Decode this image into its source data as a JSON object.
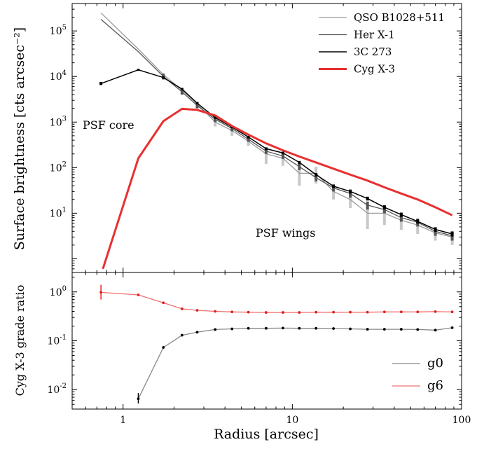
{
  "chart_data": [
    {
      "type": "line",
      "xlabel": "",
      "ylabel": "Surface brightness [cts arcsec⁻²]",
      "xscale": "log",
      "yscale": "log",
      "xlim": [
        0.5,
        100
      ],
      "ylim": [
        0.5,
        400000
      ],
      "grid": false,
      "legend_position": "top-right",
      "annotations": [
        "PSF core",
        "PSF wings"
      ],
      "x_tick_labels": [],
      "y_tick_labels": [
        {
          "value": 10,
          "base": "10",
          "exp": "1"
        },
        {
          "value": 100,
          "base": "10",
          "exp": "2"
        },
        {
          "value": 1000,
          "base": "10",
          "exp": "3"
        },
        {
          "value": 10000,
          "base": "10",
          "exp": "4"
        },
        {
          "value": 100000,
          "base": "10",
          "exp": "5"
        }
      ],
      "series": [
        {
          "name": "QSO B1028+511",
          "color": "#9a9a9a",
          "width": 1.3,
          "x": [
            0.74,
            1.23,
            1.73,
            2.23,
            2.74,
            3.5,
            4.4,
            5.5,
            7.0,
            8.8,
            11.0,
            13.8,
            17.5,
            22.0,
            27.8,
            35.0,
            44.0,
            55.0,
            70.0,
            88.0
          ],
          "y": [
            250000,
            40000,
            11000,
            5000,
            2500,
            1000,
            650,
            380,
            200,
            160,
            75,
            75,
            30,
            20,
            10,
            10,
            7,
            5.5,
            3.7,
            3.0
          ],
          "err_lo": [
            null,
            null,
            null,
            null,
            null,
            800,
            500,
            300,
            120,
            110,
            40,
            45,
            20,
            13,
            4.5,
            5.5,
            4.3,
            3.5,
            2.5,
            2.0
          ],
          "err_hi": [
            null,
            null,
            null,
            null,
            null,
            1300,
            850,
            480,
            280,
            210,
            110,
            105,
            42,
            28,
            15,
            15,
            9.5,
            7.5,
            5.0,
            4.1
          ]
        },
        {
          "name": "Her X-1",
          "color": "#555555",
          "width": 1.3,
          "x": [
            0.74,
            1.23,
            1.73,
            2.23,
            2.74,
            3.5,
            4.4,
            5.5,
            7.0,
            8.8,
            11.0,
            13.8,
            17.5,
            22.0,
            27.8,
            35.0,
            44.0,
            55.0,
            70.0,
            88.0
          ],
          "y": [
            180000,
            35000,
            10000,
            4600,
            2300,
            1150,
            720,
            420,
            230,
            180,
            105,
            60,
            36,
            27,
            15,
            12,
            8,
            6.3,
            4.0,
            3.2
          ],
          "err_lo": [
            null,
            null,
            8600,
            4000,
            2000,
            1000,
            630,
            370,
            200,
            155,
            88,
            50,
            30,
            22,
            12,
            10,
            6.5,
            5.1,
            3.2,
            2.5
          ],
          "err_hi": [
            null,
            null,
            11600,
            5300,
            2600,
            1320,
            820,
            480,
            262,
            205,
            124,
            72,
            43,
            32,
            18,
            14.4,
            9.5,
            7.6,
            4.8,
            4.0
          ]
        },
        {
          "name": "3C 273",
          "color": "#000000",
          "width": 1.5,
          "x": [
            0.74,
            1.23,
            1.73,
            2.23,
            2.74,
            3.5,
            4.4,
            5.5,
            7.0,
            8.8,
            11.0,
            13.8,
            17.5,
            22.0,
            27.8,
            35.0,
            44.0,
            55.0,
            70.0,
            88.0
          ],
          "y": [
            7000,
            14000,
            9500,
            5300,
            2600,
            1250,
            780,
            470,
            260,
            210,
            130,
            70,
            39,
            30,
            21,
            13.5,
            9.3,
            6.6,
            4.4,
            3.5
          ],
          "err_lo": [
            6500,
            13500,
            9000,
            5000,
            2450,
            1180,
            730,
            440,
            243,
            196,
            120,
            64,
            36,
            27,
            19,
            12.2,
            8.3,
            5.9,
            3.9,
            3.1
          ],
          "err_hi": [
            7600,
            14500,
            10000,
            5600,
            2750,
            1330,
            830,
            500,
            278,
            225,
            140,
            76,
            42,
            33,
            23,
            14.9,
            10.3,
            7.3,
            4.9,
            3.9
          ]
        },
        {
          "name": "Cyg X-3",
          "color": "#e83030",
          "width": 3,
          "x": [
            0.76,
            1.23,
            1.73,
            2.23,
            2.74,
            3.5,
            4.4,
            5.5,
            7.0,
            8.8,
            11.0,
            13.8,
            17.5,
            22.0,
            27.8,
            35.0,
            44.0,
            55.0,
            70.0,
            88.0
          ],
          "y": [
            0.6,
            160,
            1050,
            1950,
            1850,
            1400,
            820,
            530,
            340,
            240,
            175,
            130,
            95,
            70,
            52,
            37,
            27,
            20,
            13.5,
            9.0
          ],
          "err_lo": [],
          "err_hi": []
        }
      ]
    },
    {
      "type": "line",
      "xlabel": "Radius [arcsec]",
      "ylabel": "Cyg X-3 grade ratio",
      "xscale": "log",
      "yscale": "log",
      "xlim": [
        0.5,
        100
      ],
      "ylim": [
        0.004,
        2.5
      ],
      "grid": false,
      "legend_position": "bottom-right",
      "x_tick_labels": [
        {
          "value": 1,
          "text": "1"
        },
        {
          "value": 10,
          "text": "10"
        },
        {
          "value": 100,
          "text": "100"
        }
      ],
      "y_tick_labels": [
        {
          "value": 0.01,
          "base": "10",
          "exp": "-2"
        },
        {
          "value": 0.1,
          "base": "10",
          "exp": "-1"
        },
        {
          "value": 1,
          "base": "10",
          "exp": "0"
        }
      ],
      "series": [
        {
          "name": "g0",
          "color": "#888888",
          "mark_color": "#000000",
          "width": 1.3,
          "x": [
            1.23,
            1.73,
            2.23,
            2.74,
            3.5,
            4.4,
            5.5,
            7.0,
            8.8,
            11.0,
            13.8,
            17.5,
            22.0,
            27.8,
            35.0,
            44.0,
            55.0,
            70.0,
            88.0
          ],
          "y": [
            0.0065,
            0.073,
            0.13,
            0.15,
            0.17,
            0.175,
            0.18,
            0.18,
            0.182,
            0.18,
            0.18,
            0.178,
            0.175,
            0.172,
            0.172,
            0.172,
            0.17,
            0.165,
            0.185
          ],
          "err_lo": [
            0.0052,
            null,
            null,
            null,
            null,
            null,
            null,
            null,
            null,
            null,
            null,
            null,
            null,
            null,
            null,
            null,
            null,
            null,
            null
          ],
          "err_hi": [
            0.0085,
            null,
            null,
            null,
            null,
            null,
            null,
            null,
            null,
            null,
            null,
            null,
            null,
            null,
            null,
            null,
            null,
            null,
            null
          ]
        },
        {
          "name": "g6",
          "color": "#f07070",
          "mark_color": "#e02020",
          "width": 1.3,
          "x": [
            0.74,
            1.23,
            1.73,
            2.23,
            2.74,
            3.5,
            4.4,
            5.5,
            7.0,
            8.8,
            11.0,
            13.8,
            17.5,
            22.0,
            27.8,
            35.0,
            44.0,
            55.0,
            70.0,
            88.0
          ],
          "y": [
            0.98,
            0.87,
            0.6,
            0.45,
            0.42,
            0.4,
            0.39,
            0.385,
            0.38,
            0.38,
            0.38,
            0.385,
            0.385,
            0.385,
            0.385,
            0.39,
            0.39,
            0.39,
            0.395,
            0.39
          ],
          "err_lo": [
            0.7,
            null,
            null,
            null,
            null,
            null,
            null,
            null,
            null,
            null,
            null,
            null,
            null,
            null,
            null,
            null,
            null,
            null,
            null,
            null
          ],
          "err_hi": [
            1.4,
            null,
            null,
            null,
            null,
            null,
            null,
            null,
            null,
            null,
            null,
            null,
            null,
            null,
            null,
            null,
            null,
            null,
            null,
            null
          ]
        }
      ]
    }
  ]
}
